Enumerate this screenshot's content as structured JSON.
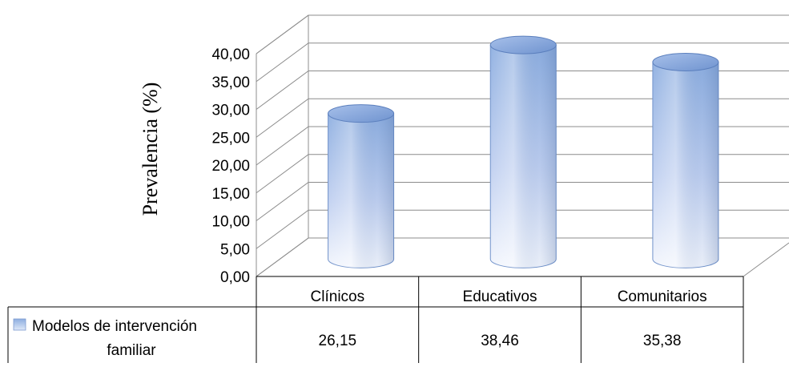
{
  "chart_data": {
    "type": "bar",
    "style": "3d-cylinder",
    "ylabel": "Prevalencia (%)",
    "ylim": [
      0,
      40
    ],
    "ytick_step": 5,
    "ytick_labels": [
      "0,00",
      "5,00",
      "10,00",
      "15,00",
      "20,00",
      "25,00",
      "30,00",
      "35,00",
      "40,00"
    ],
    "categories": [
      "Clínicos",
      "Educativos",
      "Comunitarios"
    ],
    "series": [
      {
        "name": "Modelos de intervención familiar",
        "name_lines": [
          "Modelos de intervención",
          "familiar"
        ],
        "values": [
          26.15,
          38.46,
          35.38
        ],
        "value_labels": [
          "26,15",
          "38,46",
          "35,38"
        ],
        "color": "#8fb1e3"
      }
    ],
    "grid": true,
    "legend": "data-table"
  }
}
